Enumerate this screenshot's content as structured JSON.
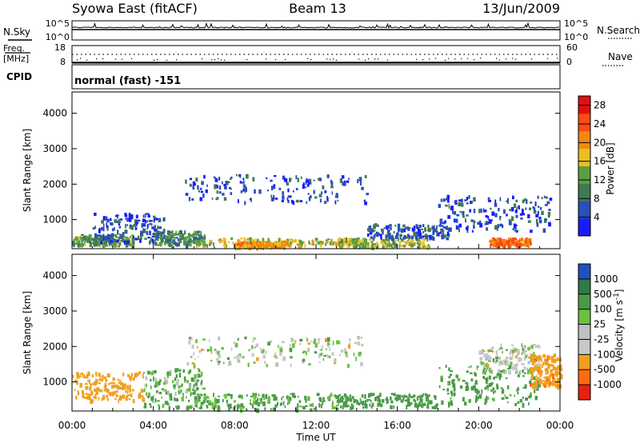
{
  "header": {
    "station": "Syowa East (fitACF)",
    "beam": "Beam 13",
    "date": "13/Jun/2009"
  },
  "mini_panels": {
    "nsky": {
      "left_label": "N.Sky",
      "right_label": "N.Search",
      "left_ticks": [
        "10^5",
        "10^0"
      ],
      "right_ticks": [
        "10^5",
        "10^0"
      ]
    },
    "freq": {
      "left_label_1": "Freq.",
      "left_label_2": "[MHz]",
      "right_label": "Nave",
      "left_ticks": [
        "18",
        "8"
      ],
      "right_ticks": [
        "60",
        "0"
      ]
    },
    "cpid": {
      "label": "CPID",
      "value": "normal (fast) -151"
    }
  },
  "colors": {
    "power_scale": [
      "#1a1aff",
      "#2a4fb8",
      "#3f7a55",
      "#5aa040",
      "#e8c020",
      "#f08a10",
      "#ff4a10",
      "#e01010"
    ],
    "velocity_scale": [
      "#2050c0",
      "#2f7a45",
      "#4a9a4a",
      "#6ac040",
      "#c0c0c0",
      "#c8c8c8",
      "#f0a020",
      "#ff6a10",
      "#e82010"
    ],
    "frame": "#000000"
  },
  "chart_data": [
    {
      "type": "heatmap",
      "name": "power",
      "xlabel": "",
      "ylabel": "Slant Range [km]",
      "x_ticks": [
        "00:00",
        "04:00",
        "08:00",
        "12:00",
        "16:00",
        "20:00",
        "00:00"
      ],
      "xlim": [
        0,
        24
      ],
      "ylim": [
        180,
        4600
      ],
      "y_ticks": [
        1000,
        2000,
        3000,
        4000
      ],
      "colorbar": {
        "label": "Power [dB]",
        "ticks": [
          4,
          8,
          12,
          16,
          20,
          24,
          28
        ],
        "range": [
          0,
          30
        ]
      },
      "regions": [
        {
          "t": [
            0.0,
            3.0
          ],
          "r": [
            300,
            600
          ],
          "value": 12
        },
        {
          "t": [
            1.0,
            4.5
          ],
          "r": [
            400,
            1200
          ],
          "value": 6
        },
        {
          "t": [
            4.0,
            6.5
          ],
          "r": [
            300,
            700
          ],
          "value": 10
        },
        {
          "t": [
            5.5,
            14.5
          ],
          "r": [
            1500,
            2300
          ],
          "value": 5
        },
        {
          "t": [
            6.0,
            14.0
          ],
          "r": [
            300,
            500
          ],
          "value": 16
        },
        {
          "t": [
            8.0,
            10.5
          ],
          "r": [
            250,
            400
          ],
          "value": 20
        },
        {
          "t": [
            13.0,
            17.5
          ],
          "r": [
            250,
            500
          ],
          "value": 14
        },
        {
          "t": [
            14.5,
            18.5
          ],
          "r": [
            500,
            900
          ],
          "value": 6
        },
        {
          "t": [
            18.0,
            23.5
          ],
          "r": [
            700,
            1700
          ],
          "value": 5
        },
        {
          "t": [
            20.5,
            22.5
          ],
          "r": [
            300,
            500
          ],
          "value": 22
        }
      ]
    },
    {
      "type": "heatmap",
      "name": "velocity",
      "xlabel": "Time UT",
      "ylabel": "Slant Range [km]",
      "x_ticks": [
        "00:00",
        "04:00",
        "08:00",
        "12:00",
        "16:00",
        "20:00",
        "00:00"
      ],
      "xlim": [
        0,
        24
      ],
      "ylim": [
        180,
        4600
      ],
      "y_ticks": [
        1000,
        2000,
        3000,
        4000
      ],
      "colorbar": {
        "label": "Velocity [m s^-1]",
        "ticks": [
          "1000",
          "500",
          "100",
          "25",
          "-25",
          "-100",
          "-500",
          "-1000"
        ]
      },
      "regions": [
        {
          "t": [
            0.0,
            3.5
          ],
          "r": [
            500,
            1300
          ],
          "value": -300
        },
        {
          "t": [
            3.5,
            6.5
          ],
          "r": [
            300,
            1400
          ],
          "value": 100
        },
        {
          "t": [
            5.5,
            14.5
          ],
          "r": [
            1500,
            2300
          ],
          "value": 0
        },
        {
          "t": [
            6.0,
            13.0
          ],
          "r": [
            250,
            700
          ],
          "value": 150
        },
        {
          "t": [
            13.0,
            18.0
          ],
          "r": [
            300,
            700
          ],
          "value": 300
        },
        {
          "t": [
            18.0,
            23.0
          ],
          "r": [
            400,
            1500
          ],
          "value": 200
        },
        {
          "t": [
            20.0,
            23.0
          ],
          "r": [
            1300,
            2100
          ],
          "value": 0
        },
        {
          "t": [
            22.5,
            24.0
          ],
          "r": [
            900,
            1800
          ],
          "value": -400
        }
      ]
    }
  ]
}
